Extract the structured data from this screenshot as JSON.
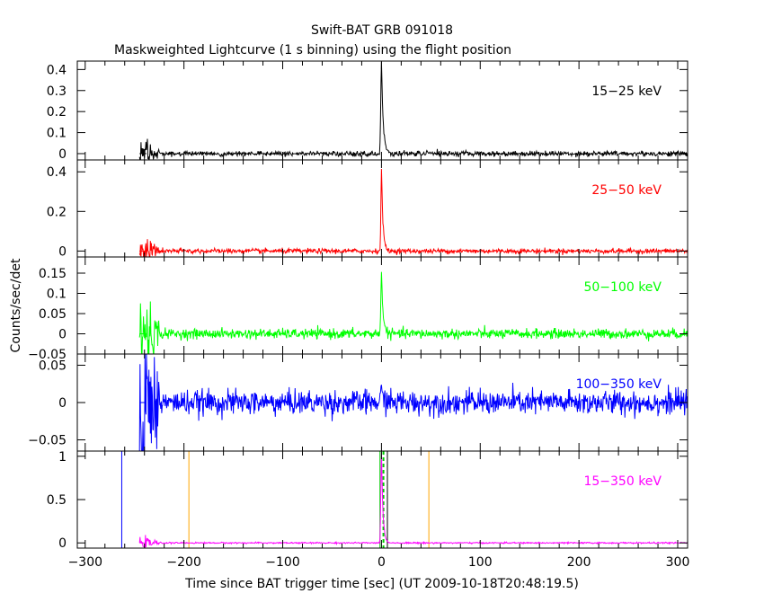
{
  "title": "Swift-BAT GRB 091018",
  "subtitle": "Maskweighted Lightcurve (1 s binning) using the flight position",
  "xlabel": "Time since BAT trigger time [sec] (UT 2009-10-18T20:48:19.5)",
  "ylabel": "Counts/sec/det",
  "colors": {
    "axes": "#000000",
    "band1": "#000000",
    "band2": "#ff0000",
    "band3": "#00ff00",
    "band4": "#0000ff",
    "band5": "#ff00ff",
    "marker_blue": "#0000ff",
    "marker_orange": "#ffa500",
    "marker_green": "#00cc00",
    "marker_black": "#000000"
  },
  "chart_data": {
    "type": "line",
    "title": "Swift-BAT GRB 091018",
    "subtitle": "Maskweighted Lightcurve (1 s binning) using the flight position",
    "xlabel": "Time since BAT trigger time [sec] (UT 2009-10-18T20:48:19.5)",
    "ylabel": "Counts/sec/det",
    "xlim": [
      -308,
      310
    ],
    "xticks": [
      -300,
      -200,
      -100,
      0,
      100,
      200,
      300
    ],
    "xtick_labels": [
      "−300",
      "−200",
      "−100",
      "0",
      "100",
      "200",
      "300"
    ],
    "data_start": -245,
    "data_end": 310,
    "binning_sec": 1,
    "panels": [
      {
        "band": "15-25 keV",
        "label": "15−25 keV",
        "color": "#000000",
        "ylim": [
          -0.03,
          0.44
        ],
        "yticks": [
          0,
          0.1,
          0.2,
          0.3,
          0.4
        ],
        "ytick_labels": [
          "0",
          "0.1",
          "0.2",
          "0.3",
          "0.4"
        ],
        "noise": 0.006,
        "early_noise": 0.012,
        "peak": {
          "t": 0,
          "height": 0.43,
          "decay": 1.8,
          "rise": 1.0
        }
      },
      {
        "band": "25-50 keV",
        "label": "25−50 keV",
        "color": "#ff0000",
        "ylim": [
          -0.03,
          0.46
        ],
        "yticks": [
          0,
          0.2,
          0.4
        ],
        "ytick_labels": [
          "0",
          "0.2",
          "0.4"
        ],
        "noise": 0.006,
        "early_noise": 0.015,
        "peak": {
          "t": 0,
          "height": 0.42,
          "decay": 1.5,
          "rise": 0.8
        }
      },
      {
        "band": "50-100 keV",
        "label": "50−100 keV",
        "color": "#00ff00",
        "ylim": [
          -0.05,
          0.19
        ],
        "yticks": [
          -0.05,
          0,
          0.05,
          0.1,
          0.15
        ],
        "ytick_labels": [
          "−0.05",
          "0",
          "0.05",
          "0.1",
          "0.15"
        ],
        "noise": 0.006,
        "early_noise": 0.02,
        "peak": {
          "t": 0,
          "height": 0.16,
          "decay": 1.6,
          "rise": 0.8
        }
      },
      {
        "band": "100-350 keV",
        "label": "100−350 keV",
        "color": "#0000ff",
        "ylim": [
          -0.065,
          0.065
        ],
        "yticks": [
          -0.05,
          0,
          0.05
        ],
        "ytick_labels": [
          "−0.05",
          "0",
          "0.05"
        ],
        "noise": 0.008,
        "early_noise": 0.025,
        "peak": {
          "t": 0,
          "height": 0.015,
          "decay": 3,
          "rise": 1
        }
      },
      {
        "band": "15-350 keV",
        "label": "15−350 keV",
        "color": "#ff00ff",
        "ylim": [
          -0.06,
          1.06
        ],
        "yticks": [
          0,
          0.5,
          1
        ],
        "ytick_labels": [
          "0",
          "0.5",
          "1"
        ],
        "noise": 0.004,
        "early_noise": 0.012,
        "peak": {
          "t": 0,
          "height": 1.05,
          "decay": 1.5,
          "rise": 0.9
        }
      }
    ],
    "markers": [
      {
        "t": -263,
        "color": "#0000ff",
        "style": "solid"
      },
      {
        "t": -195,
        "color": "#ffa500",
        "style": "solid"
      },
      {
        "t": 48,
        "color": "#ffa500",
        "style": "solid"
      },
      {
        "t": -1.5,
        "color": "#00cc00",
        "style": "solid"
      },
      {
        "t": 2,
        "color": "#00cc00",
        "style": "dashed"
      },
      {
        "t": 6,
        "color": "#000000",
        "style": "solid"
      }
    ]
  }
}
